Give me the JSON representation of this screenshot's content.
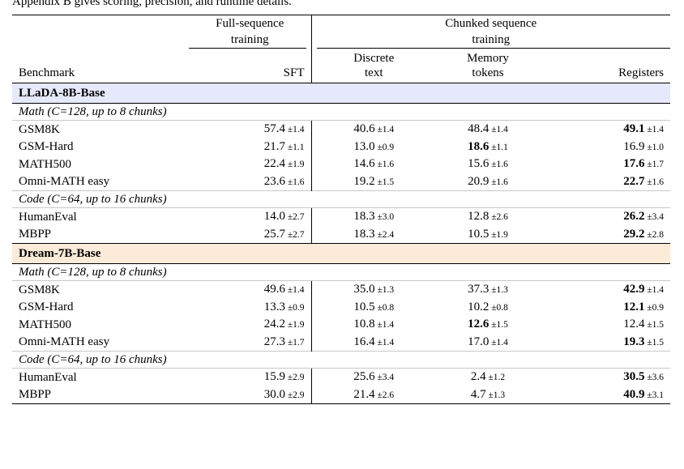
{
  "caption": "Appendix B gives scoring, precision, and runtime details.",
  "group_headers": {
    "full": [
      "Full-sequence",
      "training"
    ],
    "chunked": [
      "Chunked sequence",
      "training"
    ]
  },
  "column_headers": {
    "benchmark": "Benchmark",
    "sft": "SFT",
    "discrete": [
      "Discrete",
      "text"
    ],
    "memory": [
      "Memory",
      "tokens"
    ],
    "registers": "Registers"
  },
  "models": [
    {
      "name": "LLaDA-8B-Base",
      "sections": [
        {
          "title": "Math (C=128, up to 8 chunks)",
          "rows": [
            {
              "benchmark": "GSM8K",
              "sft": "57.4",
              "sft_pm": "±1.4",
              "disc": "40.6",
              "disc_pm": "±1.4",
              "mem": "48.4",
              "mem_pm": "±1.4",
              "reg": "49.1",
              "reg_pm": "±1.4"
            },
            {
              "benchmark": "GSM-Hard",
              "sft": "21.7",
              "sft_pm": "±1.1",
              "disc": "13.0",
              "disc_pm": "±0.9",
              "mem": "18.6",
              "mem_pm": "±1.1",
              "reg": "16.9",
              "reg_pm": "±1.0"
            },
            {
              "benchmark": "MATH500",
              "sft": "22.4",
              "sft_pm": "±1.9",
              "disc": "14.6",
              "disc_pm": "±1.6",
              "mem": "15.6",
              "mem_pm": "±1.6",
              "reg": "17.6",
              "reg_pm": "±1.7"
            },
            {
              "benchmark": "Omni-MATH easy",
              "sft": "23.6",
              "sft_pm": "±1.6",
              "disc": "19.2",
              "disc_pm": "±1.5",
              "mem": "20.9",
              "mem_pm": "±1.6",
              "reg": "22.7",
              "reg_pm": "±1.6"
            }
          ]
        },
        {
          "title": "Code (C=64, up to 16 chunks)",
          "rows": [
            {
              "benchmark": "HumanEval",
              "sft": "14.0",
              "sft_pm": "±2.7",
              "disc": "18.3",
              "disc_pm": "±3.0",
              "mem": "12.8",
              "mem_pm": "±2.6",
              "reg": "26.2",
              "reg_pm": "±3.4"
            },
            {
              "benchmark": "MBPP",
              "sft": "25.7",
              "sft_pm": "±2.7",
              "disc": "18.3",
              "disc_pm": "±2.4",
              "mem": "10.5",
              "mem_pm": "±1.9",
              "reg": "29.2",
              "reg_pm": "±2.8"
            }
          ]
        }
      ]
    },
    {
      "name": "Dream-7B-Base",
      "sections": [
        {
          "title": "Math (C=128, up to 8 chunks)",
          "rows": [
            {
              "benchmark": "GSM8K",
              "sft": "49.6",
              "sft_pm": "±1.4",
              "disc": "35.0",
              "disc_pm": "±1.3",
              "mem": "37.3",
              "mem_pm": "±1.3",
              "reg": "42.9",
              "reg_pm": "±1.4"
            },
            {
              "benchmark": "GSM-Hard",
              "sft": "13.3",
              "sft_pm": "±0.9",
              "disc": "10.5",
              "disc_pm": "±0.8",
              "mem": "10.2",
              "mem_pm": "±0.8",
              "reg": "12.1",
              "reg_pm": "±0.9"
            },
            {
              "benchmark": "MATH500",
              "sft": "24.2",
              "sft_pm": "±1.9",
              "disc": "10.8",
              "disc_pm": "±1.4",
              "mem": "12.6",
              "mem_pm": "±1.5",
              "reg": "12.4",
              "reg_pm": "±1.5"
            },
            {
              "benchmark": "Omni-MATH easy",
              "sft": "27.3",
              "sft_pm": "±1.7",
              "disc": "16.4",
              "disc_pm": "±1.4",
              "mem": "17.0",
              "mem_pm": "±1.4",
              "reg": "19.3",
              "reg_pm": "±1.5"
            }
          ]
        },
        {
          "title": "Code (C=64, up to 16 chunks)",
          "rows": [
            {
              "benchmark": "HumanEval",
              "sft": "15.9",
              "sft_pm": "±2.9",
              "disc": "25.6",
              "disc_pm": "±3.4",
              "mem": "2.4",
              "mem_pm": "±1.2",
              "reg": "30.5",
              "reg_pm": "±3.6"
            },
            {
              "benchmark": "MBPP",
              "sft": "30.0",
              "sft_pm": "±2.9",
              "disc": "21.4",
              "disc_pm": "±2.6",
              "mem": "4.7",
              "mem_pm": "±1.3",
              "reg": "40.9",
              "reg_pm": "±3.1"
            }
          ]
        }
      ]
    }
  ]
}
